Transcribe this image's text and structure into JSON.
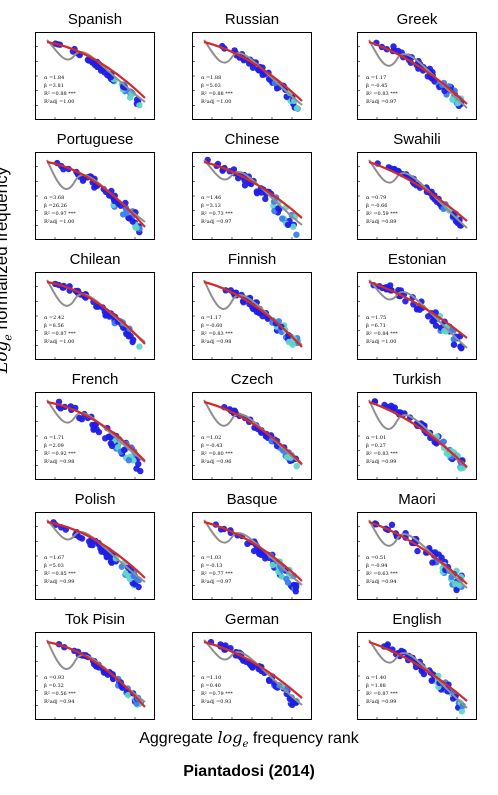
{
  "figure": {
    "y_axis_label": "Log",
    "y_axis_subscript": "e",
    "y_axis_rest": "normalized frequency",
    "x_axis_label": "Aggregate",
    "x_axis_italic": "log",
    "x_axis_subscript": "e",
    "x_axis_rest": "frequency rank",
    "credit": "Piantadosi (2014)"
  },
  "colors": {
    "model_curve": "#d42a2a",
    "empirical_curve": "#8f8f8f",
    "hex_dark": "#1f1fe6",
    "hex_mid": "#3d7df0",
    "hex_light": "#5fd6c8"
  },
  "chart_data": [
    {
      "type": "scatter",
      "title": "Spanish",
      "alpha": "α =1.84",
      "beta": "β =3.81",
      "r2": "R² =0.88 ***",
      "r2adj": "R²adj =1.00"
    },
    {
      "type": "scatter",
      "title": "Russian",
      "alpha": "α =1.88",
      "beta": "β =5.03",
      "r2": "R² =0.88 ***",
      "r2adj": "R²adj =1.00"
    },
    {
      "type": "scatter",
      "title": "Greek",
      "alpha": "α =1.17",
      "beta": "β =-0.45",
      "r2": "R² =0.83 ***",
      "r2adj": "R²adj =0.97"
    },
    {
      "type": "scatter",
      "title": "Portuguese",
      "alpha": "α =3.68",
      "beta": "β =26.26",
      "r2": "R² =0.97 ***",
      "r2adj": "R²adj =1.00"
    },
    {
      "type": "scatter",
      "title": "Chinese",
      "alpha": "α =1.46",
      "beta": "β =3.13",
      "r2": "R² =0.73 ***",
      "r2adj": "R²adj =0.97"
    },
    {
      "type": "scatter",
      "title": "Swahili",
      "alpha": "α =0.79",
      "beta": "β =-0.66",
      "r2": "R² =0.59 ***",
      "r2adj": "R²adj =0.89"
    },
    {
      "type": "scatter",
      "title": "Chilean",
      "alpha": "α =2.42",
      "beta": "β =8.56",
      "r2": "R² =0.87 ***",
      "r2adj": "R²adj =1.00"
    },
    {
      "type": "scatter",
      "title": "Finnish",
      "alpha": "α =1.17",
      "beta": "β =-0.60",
      "r2": "R² =0.83 ***",
      "r2adj": "R²adj =0.98"
    },
    {
      "type": "scatter",
      "title": "Estonian",
      "alpha": "α =1.75",
      "beta": "β =6.71",
      "r2": "R² =0.84 ***",
      "r2adj": "R²adj =1.00"
    },
    {
      "type": "scatter",
      "title": "French",
      "alpha": "α =1.71",
      "beta": "β =2.09",
      "r2": "R² =0.92 ***",
      "r2adj": "R²adj =0.98"
    },
    {
      "type": "scatter",
      "title": "Czech",
      "alpha": "α =1.02",
      "beta": "β =-0.43",
      "r2": "R² =0.80 ***",
      "r2adj": "R²adj =0.96"
    },
    {
      "type": "scatter",
      "title": "Turkish",
      "alpha": "α =1.01",
      "beta": "β =0.27",
      "r2": "R² =0.83 ***",
      "r2adj": "R²adj =0.99"
    },
    {
      "type": "scatter",
      "title": "Polish",
      "alpha": "α =1.67",
      "beta": "β =5.03",
      "r2": "R² =0.85 ***",
      "r2adj": "R²adj =0.99"
    },
    {
      "type": "scatter",
      "title": "Basque",
      "alpha": "α =1.03",
      "beta": "β =-0.13",
      "r2": "R² =0.77 ***",
      "r2adj": "R²adj =0.97"
    },
    {
      "type": "scatter",
      "title": "Maori",
      "alpha": "α =0.51",
      "beta": "β =-0.94",
      "r2": "R² =0.63 ***",
      "r2adj": "R²adj =0.94"
    },
    {
      "type": "scatter",
      "title": "Tok Pisin",
      "alpha": "α =0.93",
      "beta": "β =0.32",
      "r2": "R² =0.56 ***",
      "r2adj": "R²adj =0.94"
    },
    {
      "type": "scatter",
      "title": "German",
      "alpha": "α =1.10",
      "beta": "β =0.40",
      "r2": "R² =0.79 ***",
      "r2adj": "R²adj =0.93"
    },
    {
      "type": "scatter",
      "title": "English",
      "alpha": "α =1.40",
      "beta": "β =1.88",
      "r2": "R² =0.87 ***",
      "r2adj": "R²adj =0.99"
    }
  ]
}
